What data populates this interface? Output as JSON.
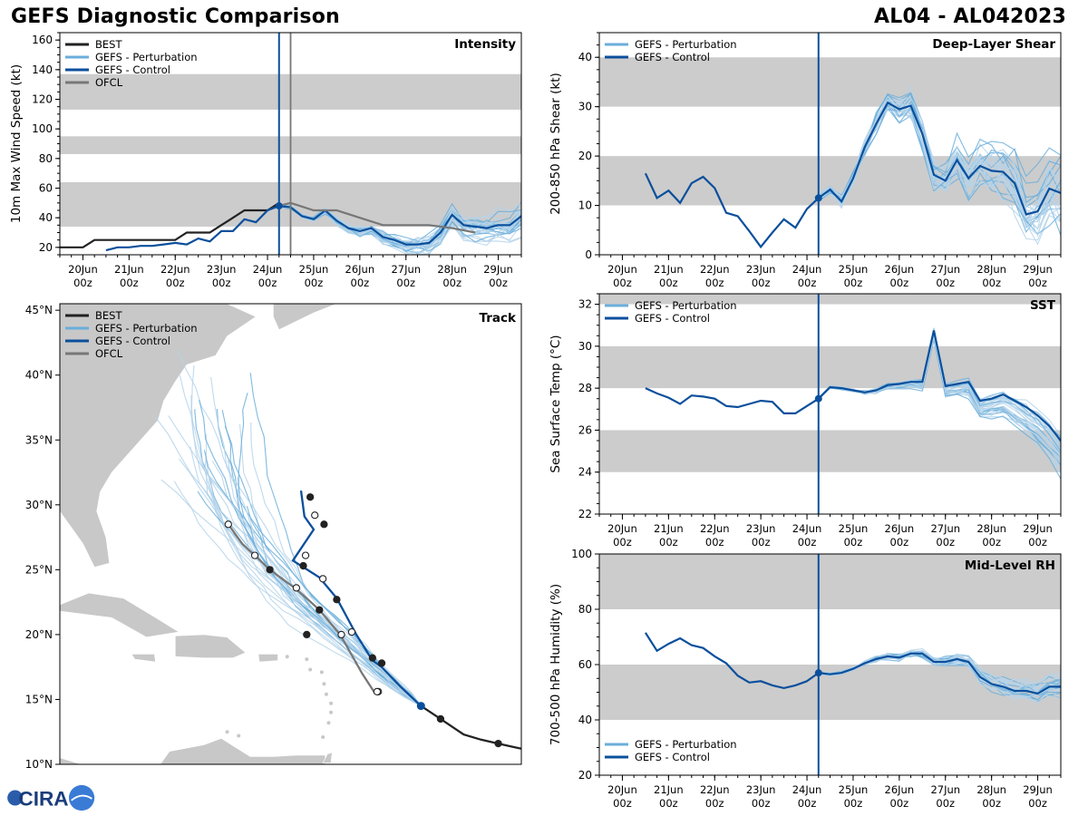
{
  "header": {
    "title_left": "GEFS Diagnostic Comparison",
    "title_right": "AL04 - AL042023"
  },
  "logo": {
    "text": "CIRA"
  },
  "colors": {
    "best": "#222222",
    "pert": "#6aaedb",
    "pert_light": "#b5d3ea",
    "control": "#0b4f9c",
    "ofcl": "#777777",
    "band": "#cccccc",
    "land": "#c8c8c8"
  },
  "time_axis": {
    "ticks": [
      "20Jun\n00z",
      "21Jun\n00z",
      "22Jun\n00z",
      "23Jun\n00z",
      "24Jun\n00z",
      "25Jun\n00z",
      "26Jun\n00z",
      "27Jun\n00z",
      "28Jun\n00z",
      "29Jun\n00z"
    ],
    "range": [
      19.5,
      29.5
    ],
    "init_day": 24.25
  },
  "chart_data": [
    {
      "id": "intensity",
      "type": "line",
      "panel_label": "Intensity",
      "ylabel": "10m Max Wind Speed (kt)",
      "ylim": [
        15,
        165
      ],
      "yticks": [
        20,
        40,
        60,
        80,
        100,
        120,
        140,
        160
      ],
      "bands": [
        [
          34,
          64
        ],
        [
          83,
          95
        ],
        [
          113,
          137
        ]
      ],
      "legend": [
        "BEST",
        "GEFS - Perturbation",
        "GEFS - Control",
        "OFCL"
      ],
      "ofcl_line_day": 24.5,
      "series": [
        {
          "name": "BEST",
          "x": [
            19.5,
            20,
            20.25,
            20.5,
            20.75,
            21,
            21.25,
            21.5,
            21.75,
            22,
            22.25,
            22.5,
            22.75,
            23,
            23.25,
            23.5,
            23.75,
            24,
            24.25
          ],
          "values": [
            20,
            20,
            25,
            25,
            25,
            25,
            25,
            25,
            25,
            25,
            30,
            30,
            30,
            35,
            40,
            45,
            45,
            45,
            50
          ]
        },
        {
          "name": "GEFS - Control",
          "x": [
            20.5,
            20.75,
            21,
            21.25,
            21.5,
            21.75,
            22,
            22.25,
            22.5,
            22.75,
            23,
            23.25,
            23.5,
            23.75,
            24,
            24.25,
            24.5,
            24.75,
            25,
            25.25,
            25.5,
            25.75,
            26,
            26.25,
            26.5,
            26.75,
            27,
            27.25,
            27.5,
            27.75,
            28,
            28.25,
            28.5,
            28.75,
            29,
            29.25,
            29.5
          ],
          "values": [
            18,
            20,
            20,
            21,
            21,
            22,
            23,
            22,
            26,
            24,
            31,
            31,
            39,
            37,
            45,
            48,
            47,
            41,
            39,
            45,
            38,
            33,
            31,
            33,
            27,
            25,
            22,
            22,
            23,
            30,
            42,
            35,
            34,
            33,
            35,
            35,
            41
          ]
        },
        {
          "name": "OFCL",
          "x": [
            24.25,
            24.5,
            25,
            25.5,
            26,
            26.5,
            27,
            27.5,
            28,
            28.5
          ],
          "values": [
            48,
            50,
            45,
            45,
            40,
            35,
            35,
            35,
            33,
            30
          ]
        }
      ]
    },
    {
      "id": "shear",
      "type": "line",
      "panel_label": "Deep-Layer Shear",
      "ylabel": "200-850 hPa Shear (kt)",
      "ylim": [
        0,
        45
      ],
      "yticks": [
        0,
        10,
        20,
        30,
        40
      ],
      "bands": [
        [
          10,
          20
        ],
        [
          30,
          40
        ]
      ],
      "legend": [
        "GEFS - Perturbation",
        "GEFS - Control"
      ],
      "series": [
        {
          "name": "GEFS - Control",
          "x": [
            20.5,
            20.75,
            21,
            21.25,
            21.5,
            21.75,
            22,
            22.25,
            22.5,
            22.75,
            23,
            23.25,
            23.5,
            23.75,
            24,
            24.25,
            24.5,
            24.75,
            25,
            25.25,
            25.5,
            25.75,
            26,
            26.25,
            26.5,
            26.75,
            27,
            27.25,
            27.5,
            27.75,
            28,
            28.25,
            28.5,
            28.75,
            29,
            29.25,
            29.5
          ],
          "values": [
            16.5,
            11.5,
            13,
            10.5,
            14.5,
            15.8,
            13.5,
            8.5,
            7.8,
            4.8,
            1.6,
            4.5,
            7.2,
            5.5,
            9.3,
            11.5,
            13.2,
            10.8,
            15.5,
            21.8,
            26.5,
            30.8,
            29.5,
            30.2,
            24.5,
            16.2,
            15,
            19.2,
            15.5,
            18,
            17,
            16.8,
            14.5,
            8.2,
            8.8,
            13.4,
            12.5
          ]
        }
      ]
    },
    {
      "id": "sst",
      "type": "line",
      "panel_label": "SST",
      "ylabel": "Sea Surface Temp (°C)",
      "ylim": [
        22,
        32.5
      ],
      "yticks": [
        22,
        24,
        26,
        28,
        30,
        32
      ],
      "bands": [
        [
          24,
          26
        ],
        [
          28,
          30
        ],
        [
          32,
          34
        ]
      ],
      "legend": [
        "GEFS - Perturbation",
        "GEFS - Control"
      ],
      "series": [
        {
          "name": "GEFS - Control",
          "x": [
            20.5,
            20.75,
            21,
            21.25,
            21.5,
            21.75,
            22,
            22.25,
            22.5,
            22.75,
            23,
            23.25,
            23.5,
            23.75,
            24,
            24.25,
            24.5,
            24.75,
            25,
            25.25,
            25.5,
            25.75,
            26,
            26.25,
            26.5,
            26.75,
            27,
            27.25,
            27.5,
            27.75,
            28,
            28.25,
            28.5,
            28.75,
            29,
            29.25,
            29.5
          ],
          "values": [
            28,
            27.75,
            27.55,
            27.25,
            27.65,
            27.6,
            27.5,
            27.15,
            27.1,
            27.25,
            27.4,
            27.35,
            26.8,
            26.8,
            27.15,
            27.5,
            28.05,
            28,
            27.9,
            27.8,
            27.9,
            28.15,
            28.2,
            28.3,
            28.3,
            30.75,
            28.1,
            28.2,
            28.3,
            27.4,
            27.5,
            27.7,
            27.4,
            27.1,
            26.7,
            26.2,
            25.5
          ]
        }
      ]
    },
    {
      "id": "rh",
      "type": "line",
      "panel_label": "Mid-Level RH",
      "ylabel": "700-500 hPa Humidity (%)",
      "ylim": [
        20,
        100
      ],
      "yticks": [
        20,
        40,
        60,
        80,
        100
      ],
      "bands": [
        [
          40,
          60
        ],
        [
          80,
          100
        ]
      ],
      "legend": [
        "GEFS - Perturbation",
        "GEFS - Control"
      ],
      "series": [
        {
          "name": "GEFS - Control",
          "x": [
            20.5,
            20.75,
            21,
            21.25,
            21.5,
            21.75,
            22,
            22.25,
            22.5,
            22.75,
            23,
            23.25,
            23.5,
            23.75,
            24,
            24.25,
            24.5,
            24.75,
            25,
            25.25,
            25.5,
            25.75,
            26,
            26.25,
            26.5,
            26.75,
            27,
            27.25,
            27.5,
            27.75,
            28,
            28.25,
            28.5,
            28.75,
            29,
            29.25,
            29.5
          ],
          "values": [
            71.5,
            65,
            67.5,
            69.5,
            67,
            66,
            63,
            60.5,
            56,
            53.5,
            54,
            52.5,
            51.5,
            52.5,
            54,
            57,
            56.5,
            57,
            58.5,
            60.5,
            62,
            63,
            62.5,
            64,
            64,
            61,
            61,
            62,
            61,
            55.5,
            53,
            52,
            50.5,
            50.5,
            49.5,
            52,
            52
          ]
        }
      ]
    },
    {
      "id": "track",
      "type": "scatter",
      "panel_label": "Track",
      "xlim": [
        -84.5,
        -44.5
      ],
      "ylim": [
        10,
        45.5
      ],
      "yticks": [
        10,
        15,
        20,
        25,
        30,
        35,
        40,
        45
      ],
      "ytick_labels": [
        "10°N",
        "15°N",
        "20°N",
        "25°N",
        "30°N",
        "35°N",
        "40°N",
        "45°N"
      ],
      "legend": [
        "BEST",
        "GEFS - Perturbation",
        "GEFS - Control",
        "OFCL"
      ],
      "series": [
        {
          "name": "BEST",
          "lon": [
            -44.5,
            -45.5,
            -46.5,
            -48,
            -49.5,
            -51.5,
            -53.2
          ],
          "lat": [
            11.2,
            11.4,
            11.6,
            11.9,
            12.3,
            13.5,
            14.5
          ]
        },
        {
          "name": "BEST markers",
          "lon": [
            -46.5,
            -51.5,
            -53.2
          ],
          "lat": [
            11.6,
            13.5,
            14.5
          ]
        },
        {
          "name": "GEFS - Control",
          "lon": [
            -53.2,
            -55,
            -56.6,
            -57.4,
            -58.8,
            -60.5,
            -62.0,
            -63.4,
            -64.3,
            -62.5,
            -63.3,
            -63.6
          ],
          "lat": [
            14.5,
            16.0,
            17.5,
            18.0,
            20.0,
            22.8,
            24.4,
            25.2,
            25.7,
            28.1,
            29.1,
            31.1
          ]
        },
        {
          "name": "Control markers black",
          "lon": [
            -56.6,
            -57.4,
            -60.5,
            -63.1,
            -63.4,
            -61.6,
            -62.8
          ],
          "lat": [
            17.8,
            18.2,
            22.7,
            20.0,
            25.3,
            28.5,
            30.6
          ]
        },
        {
          "name": "Control markers white",
          "lon": [
            -59.2,
            -61.7,
            -63.2,
            -62.4,
            -56.9
          ],
          "lat": [
            20.2,
            24.3,
            26.1,
            29.2,
            15.6
          ]
        },
        {
          "name": "OFCL",
          "lon": [
            -57.2,
            -58.3,
            -60.2,
            -62.0,
            -64.0,
            -66.3,
            -67.6,
            -68.7,
            -69.9
          ],
          "lat": [
            15.5,
            17.0,
            20.0,
            21.9,
            23.5,
            25.0,
            26.1,
            27.0,
            28.5
          ]
        },
        {
          "name": "OFCL markers white",
          "lon": [
            -57.0,
            -60.1,
            -64.0,
            -67.6,
            -69.9
          ],
          "lat": [
            15.6,
            20.0,
            23.6,
            26.1,
            28.5
          ]
        },
        {
          "name": "OFCL markers black",
          "lon": [
            -62.0,
            -66.3
          ],
          "lat": [
            21.9,
            25.0
          ]
        }
      ]
    }
  ]
}
